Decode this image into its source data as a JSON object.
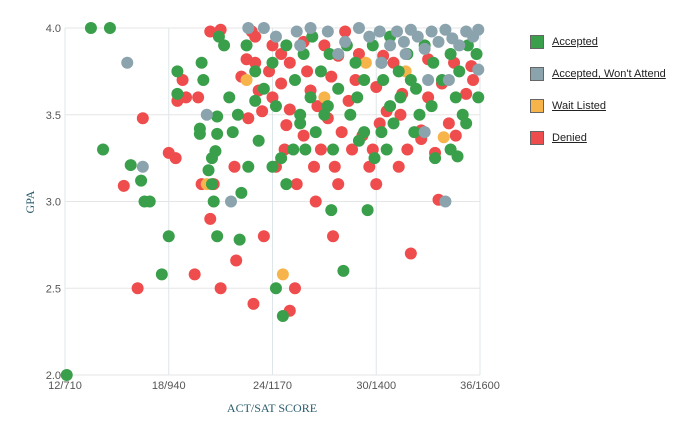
{
  "chart_data": {
    "type": "scatter",
    "title": "",
    "xlabel": "ACT/SAT SCORE",
    "ylabel": "GPA",
    "x_unit": "ACT composite",
    "xlim": [
      12,
      36
    ],
    "ylim": [
      2.0,
      4.0
    ],
    "x_ticks": [
      {
        "value": 12,
        "label": "12/710"
      },
      {
        "value": 18,
        "label": "18/940"
      },
      {
        "value": 24,
        "label": "24/1170"
      },
      {
        "value": 30,
        "label": "30/1400"
      },
      {
        "value": 36,
        "label": "36/1600"
      }
    ],
    "y_ticks": [
      {
        "value": 2.0,
        "label": "2.0"
      },
      {
        "value": 2.5,
        "label": "2.5"
      },
      {
        "value": 3.0,
        "label": "3.0"
      },
      {
        "value": 3.5,
        "label": "3.5"
      },
      {
        "value": 4.0,
        "label": "4.0"
      }
    ],
    "grid": true,
    "legend_position": "right",
    "series": [
      {
        "name": "Denied",
        "color": "#ef4d4d",
        "points": [
          [
            18.8,
            3.7
          ],
          [
            16.5,
            3.48
          ],
          [
            19,
            3.6
          ],
          [
            19.7,
            3.6
          ],
          [
            18.5,
            3.58
          ],
          [
            18,
            3.28
          ],
          [
            18.4,
            3.25
          ],
          [
            19.9,
            3.1
          ],
          [
            20.4,
            2.9
          ],
          [
            21,
            2.5
          ],
          [
            19.5,
            2.58
          ],
          [
            15.4,
            3.09
          ],
          [
            16.2,
            2.5
          ],
          [
            21.9,
            2.66
          ],
          [
            22.9,
            2.41
          ],
          [
            23.5,
            2.8
          ],
          [
            25.3,
            2.5
          ],
          [
            25,
            2.37
          ],
          [
            20.6,
            3.1
          ],
          [
            21.8,
            3.2
          ],
          [
            24.2,
            3.2
          ],
          [
            25.4,
            3.1
          ],
          [
            26.5,
            3.0
          ],
          [
            27.5,
            2.8
          ],
          [
            27.8,
            3.1
          ],
          [
            29.6,
            3.2
          ],
          [
            30,
            3.1
          ],
          [
            31.3,
            3.2
          ],
          [
            32,
            2.7
          ],
          [
            33.6,
            3.01
          ],
          [
            34.6,
            3.38
          ],
          [
            31.8,
            3.3
          ],
          [
            20.4,
            3.98
          ],
          [
            21,
            3.99
          ],
          [
            22.5,
            3.82
          ],
          [
            22.2,
            3.72
          ],
          [
            23,
            3.8
          ],
          [
            23.8,
            3.75
          ],
          [
            24.5,
            3.68
          ],
          [
            24,
            3.6
          ],
          [
            23.4,
            3.52
          ],
          [
            22.6,
            3.48
          ],
          [
            25,
            3.53
          ],
          [
            26.6,
            3.55
          ],
          [
            27.2,
            3.48
          ],
          [
            28,
            3.4
          ],
          [
            28.6,
            3.3
          ],
          [
            29.2,
            3.38
          ],
          [
            30.2,
            3.45
          ],
          [
            31.4,
            3.5
          ],
          [
            32.6,
            3.41
          ],
          [
            33.4,
            3.28
          ],
          [
            34.2,
            3.45
          ],
          [
            35.2,
            3.62
          ],
          [
            35.6,
            3.7
          ],
          [
            33,
            3.6
          ],
          [
            31.5,
            3.62
          ],
          [
            30,
            3.66
          ],
          [
            28.8,
            3.7
          ],
          [
            27.4,
            3.72
          ],
          [
            26,
            3.75
          ],
          [
            25,
            3.8
          ],
          [
            24.5,
            3.85
          ],
          [
            23,
            3.95
          ],
          [
            27,
            3.9
          ],
          [
            29,
            3.85
          ],
          [
            31,
            3.8
          ],
          [
            33,
            3.82
          ],
          [
            34.5,
            3.8
          ],
          [
            35.5,
            3.78
          ],
          [
            32.6,
            3.36
          ],
          [
            33.8,
            3.68
          ],
          [
            26.8,
            3.3
          ],
          [
            26.4,
            3.2
          ],
          [
            25.8,
            3.38
          ],
          [
            24.7,
            3.3
          ],
          [
            27.6,
            3.2
          ],
          [
            29.8,
            3.3
          ],
          [
            28.4,
            3.58
          ],
          [
            30.6,
            3.52
          ],
          [
            26.2,
            3.64
          ],
          [
            24.8,
            3.44
          ],
          [
            23.2,
            3.64
          ],
          [
            27.8,
            3.84
          ],
          [
            30.4,
            3.84
          ],
          [
            28.2,
            3.98
          ],
          [
            25.8,
            3.92
          ],
          [
            24,
            3.9
          ],
          [
            22.8,
            3.98
          ]
        ]
      },
      {
        "name": "Wait Listed",
        "color": "#f6b44b",
        "points": [
          [
            24.6,
            2.58
          ],
          [
            20.2,
            3.1
          ],
          [
            33.9,
            3.37
          ],
          [
            31.7,
            3.75
          ],
          [
            29.4,
            3.8
          ],
          [
            22.5,
            3.7
          ],
          [
            27,
            3.6
          ]
        ]
      },
      {
        "name": "Accepted",
        "color": "#3a9f4a",
        "points": [
          [
            12.1,
            2.0
          ],
          [
            13.5,
            4.0
          ],
          [
            14.6,
            4.0
          ],
          [
            14.2,
            3.3
          ],
          [
            15.8,
            3.21
          ],
          [
            16.4,
            3.12
          ],
          [
            16.6,
            3.0
          ],
          [
            16.9,
            3.0
          ],
          [
            17.6,
            2.58
          ],
          [
            18,
            2.8
          ],
          [
            18.5,
            3.75
          ],
          [
            18.5,
            3.62
          ],
          [
            19.8,
            3.42
          ],
          [
            19.8,
            3.39
          ],
          [
            19.9,
            3.8
          ],
          [
            20.3,
            3.18
          ],
          [
            20.5,
            3.1
          ],
          [
            20.8,
            3.49
          ],
          [
            20.8,
            3.39
          ],
          [
            20.7,
            3.29
          ],
          [
            20.5,
            3.25
          ],
          [
            20.6,
            3.0
          ],
          [
            20.8,
            2.8
          ],
          [
            20.9,
            3.95
          ],
          [
            21.2,
            3.9
          ],
          [
            21.7,
            3.4
          ],
          [
            22,
            3.5
          ],
          [
            22.1,
            2.78
          ],
          [
            22.2,
            3.05
          ],
          [
            22.6,
            3.2
          ],
          [
            23,
            3.58
          ],
          [
            23.2,
            3.35
          ],
          [
            24,
            3.2
          ],
          [
            24.5,
            3.25
          ],
          [
            24.8,
            3.1
          ],
          [
            24.2,
            2.5
          ],
          [
            24.6,
            2.34
          ],
          [
            25.2,
            3.3
          ],
          [
            25.6,
            3.5
          ],
          [
            25.9,
            3.3
          ],
          [
            26.2,
            3.6
          ],
          [
            27,
            3.5
          ],
          [
            27.4,
            2.95
          ],
          [
            27.5,
            3.3
          ],
          [
            28.1,
            2.6
          ],
          [
            28.5,
            3.5
          ],
          [
            29.3,
            3.4
          ],
          [
            29.5,
            2.95
          ],
          [
            29.9,
            3.25
          ],
          [
            30.3,
            3.4
          ],
          [
            30.6,
            3.3
          ],
          [
            30.4,
            3.7
          ],
          [
            31.4,
            3.6
          ],
          [
            32.2,
            3.4
          ],
          [
            32.5,
            3.5
          ],
          [
            33.4,
            3.25
          ],
          [
            34.3,
            3.3
          ],
          [
            34.7,
            3.26
          ],
          [
            35,
            3.5
          ],
          [
            35.9,
            3.6
          ],
          [
            22.5,
            3.9
          ],
          [
            23,
            3.75
          ],
          [
            23.5,
            3.65
          ],
          [
            24,
            3.8
          ],
          [
            24.8,
            3.9
          ],
          [
            25.3,
            3.7
          ],
          [
            25.8,
            3.85
          ],
          [
            26.3,
            3.95
          ],
          [
            26.8,
            3.75
          ],
          [
            27.3,
            3.85
          ],
          [
            27.8,
            3.65
          ],
          [
            28.3,
            3.9
          ],
          [
            28.8,
            3.8
          ],
          [
            29.3,
            3.7
          ],
          [
            29.8,
            3.9
          ],
          [
            30.3,
            3.8
          ],
          [
            30.8,
            3.95
          ],
          [
            31.3,
            3.75
          ],
          [
            31.8,
            3.85
          ],
          [
            32.3,
            3.65
          ],
          [
            32.8,
            3.9
          ],
          [
            33.3,
            3.8
          ],
          [
            33.8,
            3.7
          ],
          [
            34.3,
            3.85
          ],
          [
            34.8,
            3.75
          ],
          [
            35.3,
            3.9
          ],
          [
            35.8,
            3.85
          ],
          [
            24.2,
            3.55
          ],
          [
            25.6,
            3.45
          ],
          [
            27.2,
            3.55
          ],
          [
            28.9,
            3.6
          ],
          [
            30.8,
            3.55
          ],
          [
            32,
            3.7
          ],
          [
            33.2,
            3.55
          ],
          [
            34.6,
            3.6
          ],
          [
            26.5,
            3.4
          ],
          [
            29,
            3.35
          ],
          [
            31,
            3.45
          ],
          [
            35.2,
            3.45
          ],
          [
            20,
            3.7
          ],
          [
            21.5,
            3.6
          ]
        ]
      },
      {
        "name": "Accepted, Won't Attend",
        "color": "#8ba3ad",
        "points": [
          [
            15.6,
            3.8
          ],
          [
            16.5,
            3.2
          ],
          [
            20.2,
            3.5
          ],
          [
            21.6,
            3.0
          ],
          [
            22.6,
            4.0
          ],
          [
            23.5,
            4.0
          ],
          [
            24.2,
            3.95
          ],
          [
            25.4,
            3.98
          ],
          [
            26.2,
            4.0
          ],
          [
            27.2,
            3.98
          ],
          [
            28.2,
            3.92
          ],
          [
            29,
            4.0
          ],
          [
            29.6,
            3.95
          ],
          [
            30.2,
            3.98
          ],
          [
            30.8,
            3.9
          ],
          [
            31.2,
            3.98
          ],
          [
            31.6,
            3.92
          ],
          [
            32,
            3.99
          ],
          [
            32.4,
            3.95
          ],
          [
            32.8,
            3.88
          ],
          [
            33.2,
            3.98
          ],
          [
            33.6,
            3.92
          ],
          [
            34,
            3.99
          ],
          [
            34.4,
            3.94
          ],
          [
            34.8,
            3.9
          ],
          [
            35.2,
            3.98
          ],
          [
            35.6,
            3.95
          ],
          [
            35.9,
            3.99
          ],
          [
            33,
            3.7
          ],
          [
            34.2,
            3.7
          ],
          [
            35.9,
            3.76
          ],
          [
            32.8,
            3.4
          ],
          [
            34,
            3.0
          ],
          [
            27.8,
            3.85
          ],
          [
            30.3,
            3.8
          ],
          [
            31.7,
            3.85
          ],
          [
            25.6,
            3.9
          ]
        ]
      }
    ]
  }
}
